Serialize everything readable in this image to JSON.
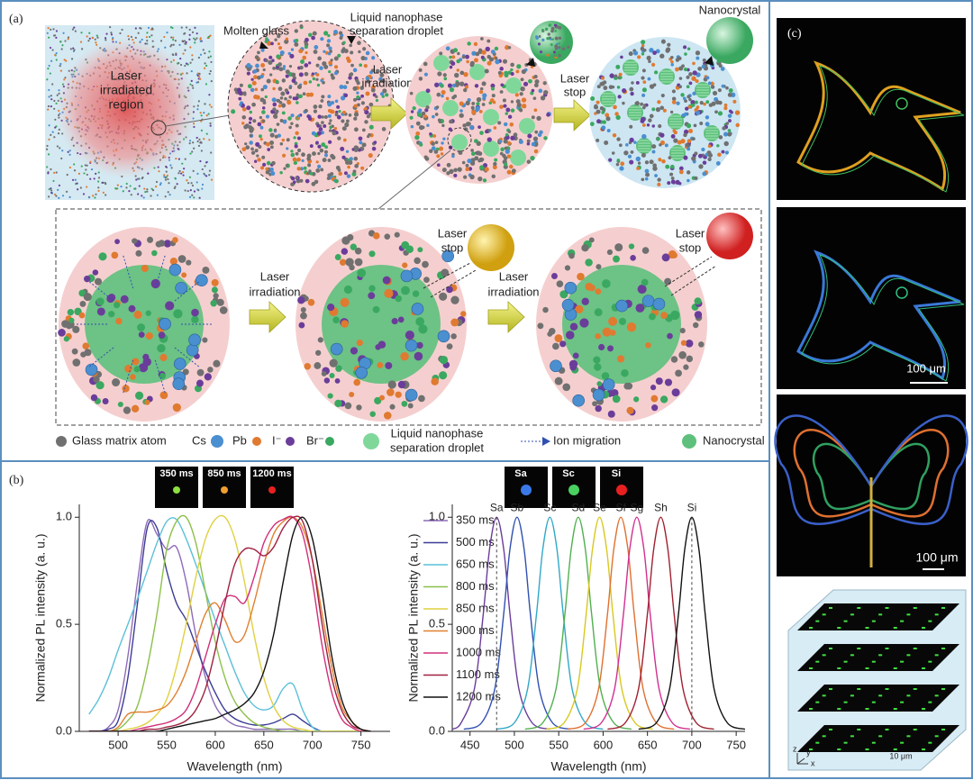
{
  "panel_a": {
    "label": "(a)",
    "irradiated_region": [
      "Laser",
      "irradiated",
      "region"
    ],
    "molten_glass": "Molten glass",
    "droplet": [
      "Liquid nanophase",
      "separation droplet"
    ],
    "top_irradiation": [
      "Laser",
      "irradiation"
    ],
    "top_stop": [
      "Laser",
      "stop"
    ],
    "nanocrystal": "Nanocrystal",
    "bottom_irradiation": [
      [
        "Laser",
        "irradiation"
      ],
      [
        "Laser",
        "irradiation"
      ]
    ],
    "bottom_stop": [
      [
        "Laser",
        "stop"
      ],
      [
        "Laser",
        "stop"
      ]
    ],
    "legend": {
      "glass": "Glass matrix atom",
      "cs": "Cs",
      "pb": "Pb",
      "i": "I⁻",
      "br": "Br⁻",
      "droplet": [
        "Liquid nanophase",
        "separation droplet"
      ],
      "migration": "Ion migration",
      "nanocrystal": "Nanocrystal"
    }
  },
  "panel_b": {
    "label": "(b)",
    "insets_left": [
      "350 ms",
      "850 ms",
      "1200 ms"
    ],
    "insets_right": [
      "Sa",
      "Sc",
      "Si"
    ]
  },
  "panel_c": {
    "label": "(c)",
    "scale_bars": [
      "100 μm",
      "100 μm",
      "10 μm"
    ],
    "axes": [
      "z",
      "y",
      "x"
    ]
  },
  "chart_data": [
    {
      "type": "line",
      "x_label": "Wavelength (nm)",
      "y_label": "Normalized PL intensity (a. u.)",
      "xlim": [
        460,
        780
      ],
      "ylim": [
        0,
        1.06
      ],
      "xticks": [
        500,
        550,
        600,
        650,
        700,
        750
      ],
      "yticks": [
        {
          "value": 0,
          "label": "0.0"
        },
        {
          "value": 0.5,
          "label": "0.5"
        },
        {
          "value": 1,
          "label": "1.0"
        }
      ],
      "x": [
        470,
        480,
        490,
        500,
        510,
        520,
        530,
        540,
        550,
        560,
        570,
        580,
        590,
        600,
        610,
        620,
        630,
        640,
        650,
        660,
        670,
        680,
        690,
        700,
        710,
        720,
        730,
        740,
        750,
        760
      ],
      "series": [
        {
          "name": "350 ms",
          "color": "#8e6bb8",
          "values": [
            0,
            0,
            0.02,
            0.1,
            0.35,
            0.7,
            0.98,
            0.92,
            0.85,
            0.86,
            0.7,
            0.45,
            0.25,
            0.12,
            0.06,
            0.03,
            0.02,
            0.01,
            0.01,
            0.01,
            0.01,
            0.01,
            0,
            0,
            0,
            0,
            0,
            0,
            0,
            0
          ]
        },
        {
          "name": "500 ms",
          "color": "#3c3c96",
          "values": [
            0,
            0,
            0.01,
            0.05,
            0.25,
            0.6,
            0.95,
            0.95,
            0.75,
            0.6,
            0.52,
            0.4,
            0.28,
            0.18,
            0.1,
            0.06,
            0.04,
            0.03,
            0.03,
            0.04,
            0.06,
            0.08,
            0.05,
            0.02,
            0,
            0,
            0,
            0,
            0,
            0
          ]
        },
        {
          "name": "650 ms",
          "color": "#5bc0d8",
          "values": [
            0.08,
            0.15,
            0.25,
            0.38,
            0.5,
            0.62,
            0.75,
            0.88,
            0.98,
            0.99,
            0.9,
            0.78,
            0.65,
            0.52,
            0.4,
            0.28,
            0.18,
            0.12,
            0.1,
            0.12,
            0.2,
            0.22,
            0.1,
            0.02,
            0,
            0,
            0,
            0,
            0,
            0
          ]
        },
        {
          "name": "800 ms",
          "color": "#8cc04a",
          "values": [
            0,
            0,
            0,
            0.01,
            0.05,
            0.12,
            0.3,
            0.55,
            0.85,
            0.98,
            1.0,
            0.88,
            0.65,
            0.42,
            0.25,
            0.14,
            0.08,
            0.04,
            0.02,
            0.01,
            0,
            0,
            0,
            0,
            0,
            0,
            0,
            0,
            0,
            0
          ]
        },
        {
          "name": "850 ms",
          "color": "#e0d040",
          "values": [
            0,
            0,
            0,
            0,
            0.01,
            0.02,
            0.04,
            0.08,
            0.15,
            0.3,
            0.5,
            0.72,
            0.9,
            0.99,
            1.0,
            0.9,
            0.7,
            0.45,
            0.25,
            0.12,
            0.05,
            0.02,
            0.01,
            0,
            0,
            0,
            0,
            0,
            0,
            0
          ]
        },
        {
          "name": "900 ms",
          "color": "#e08030",
          "values": [
            0,
            0,
            0,
            0.02,
            0.08,
            0.09,
            0.09,
            0.1,
            0.12,
            0.18,
            0.28,
            0.42,
            0.55,
            0.6,
            0.52,
            0.42,
            0.45,
            0.6,
            0.78,
            0.92,
            0.98,
            1.0,
            0.95,
            0.8,
            0.55,
            0.3,
            0.12,
            0.05,
            0.01,
            0
          ]
        },
        {
          "name": "1000 ms",
          "color": "#d0307a",
          "values": [
            0,
            0,
            0,
            0,
            0,
            0.01,
            0.02,
            0.03,
            0.04,
            0.06,
            0.1,
            0.2,
            0.35,
            0.5,
            0.62,
            0.63,
            0.6,
            0.72,
            0.88,
            0.96,
            0.99,
            1.0,
            0.92,
            0.7,
            0.4,
            0.18,
            0.06,
            0.02,
            0,
            0
          ]
        },
        {
          "name": "1100 ms",
          "color": "#a02040",
          "values": [
            0,
            0,
            0,
            0,
            0,
            0,
            0.01,
            0.01,
            0.02,
            0.03,
            0.05,
            0.1,
            0.2,
            0.38,
            0.6,
            0.78,
            0.85,
            0.85,
            0.82,
            0.86,
            0.95,
            1.0,
            0.98,
            0.8,
            0.5,
            0.25,
            0.1,
            0.03,
            0.01,
            0
          ]
        },
        {
          "name": "1200 ms",
          "color": "#111111",
          "values": [
            0,
            0,
            0,
            0,
            0,
            0,
            0,
            0,
            0.01,
            0.02,
            0.03,
            0.04,
            0.05,
            0.06,
            0.08,
            0.1,
            0.13,
            0.18,
            0.28,
            0.45,
            0.7,
            0.92,
            1.0,
            0.9,
            0.65,
            0.35,
            0.15,
            0.05,
            0.01,
            0
          ]
        }
      ]
    },
    {
      "type": "line",
      "x_label": "Wavelength (nm)",
      "y_label": "Normalized PL intensity (a. u.)",
      "xlim": [
        430,
        760
      ],
      "ylim": [
        0,
        1.06
      ],
      "xticks": [
        450,
        500,
        550,
        600,
        650,
        700,
        750
      ],
      "yticks": [
        {
          "value": 0,
          "label": "0.0"
        },
        {
          "value": 0.5,
          "label": "0.5"
        },
        {
          "value": 1,
          "label": "1.0"
        }
      ],
      "series": [
        {
          "name": "Sa",
          "color": "#6a3d9a",
          "x": [
            430,
            440,
            455,
            465,
            472,
            480,
            488,
            495,
            505,
            520,
            540
          ],
          "values": [
            0.01,
            0.04,
            0.2,
            0.55,
            0.85,
            1.0,
            0.85,
            0.55,
            0.2,
            0.04,
            0.01
          ]
        },
        {
          "name": "Sb",
          "color": "#3050b0",
          "x": [
            443,
            463,
            478,
            488,
            495,
            503,
            511,
            518,
            528,
            543,
            563
          ],
          "values": [
            0.01,
            0.04,
            0.2,
            0.55,
            0.85,
            1.0,
            0.85,
            0.55,
            0.2,
            0.04,
            0.01
          ]
        },
        {
          "name": "Sc",
          "color": "#30a8c8",
          "x": [
            480,
            500,
            515,
            525,
            532,
            540,
            548,
            555,
            565,
            580,
            600
          ],
          "values": [
            0.01,
            0.04,
            0.2,
            0.55,
            0.85,
            1.0,
            0.85,
            0.55,
            0.2,
            0.04,
            0.01
          ]
        },
        {
          "name": "Sd",
          "color": "#50b050",
          "x": [
            512,
            532,
            547,
            557,
            564,
            572,
            580,
            587,
            597,
            612,
            632
          ],
          "values": [
            0.01,
            0.04,
            0.2,
            0.55,
            0.85,
            1.0,
            0.85,
            0.55,
            0.2,
            0.04,
            0.01
          ]
        },
        {
          "name": "Se",
          "color": "#d8c820",
          "x": [
            536,
            556,
            571,
            581,
            588,
            596,
            604,
            611,
            621,
            636,
            656
          ],
          "values": [
            0.01,
            0.04,
            0.2,
            0.55,
            0.85,
            1.0,
            0.85,
            0.55,
            0.2,
            0.04,
            0.01
          ]
        },
        {
          "name": "Sf",
          "color": "#e07030",
          "x": [
            560,
            580,
            595,
            605,
            612,
            620,
            628,
            635,
            645,
            660,
            680
          ],
          "values": [
            0.01,
            0.04,
            0.2,
            0.55,
            0.85,
            1.0,
            0.85,
            0.55,
            0.2,
            0.04,
            0.01
          ]
        },
        {
          "name": "Sg",
          "color": "#d03090",
          "x": [
            578,
            598,
            613,
            623,
            630,
            638,
            646,
            653,
            663,
            678,
            698
          ],
          "values": [
            0.01,
            0.04,
            0.2,
            0.55,
            0.85,
            1.0,
            0.85,
            0.55,
            0.2,
            0.04,
            0.01
          ]
        },
        {
          "name": "Sh",
          "color": "#a02030",
          "x": [
            605,
            625,
            640,
            650,
            657,
            665,
            673,
            680,
            690,
            705,
            725
          ],
          "values": [
            0.01,
            0.04,
            0.2,
            0.55,
            0.85,
            1.0,
            0.85,
            0.55,
            0.2,
            0.04,
            0.01
          ]
        },
        {
          "name": "Si",
          "color": "#111111",
          "x": [
            640,
            660,
            675,
            685,
            692,
            700,
            708,
            715,
            725,
            740,
            760
          ],
          "values": [
            0.01,
            0.04,
            0.2,
            0.55,
            0.85,
            1.0,
            0.85,
            0.55,
            0.2,
            0.04,
            0.01
          ]
        }
      ]
    }
  ]
}
